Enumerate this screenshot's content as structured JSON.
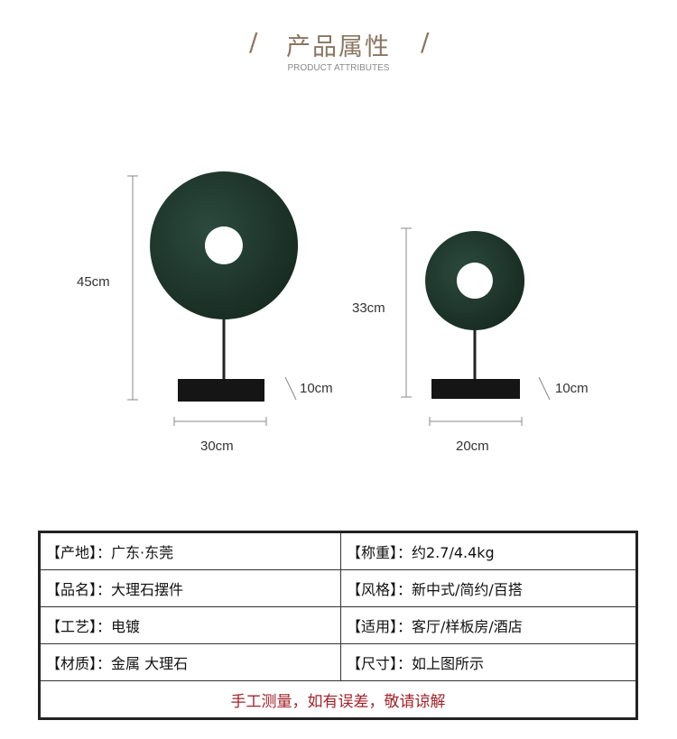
{
  "header": {
    "title": "产品属性",
    "subtitle": "PRODUCT ATTRIBUTES",
    "divider": "/"
  },
  "products": [
    {
      "height": "45cm",
      "width": "30cm",
      "base_height": "10cm"
    },
    {
      "height": "33cm",
      "width": "20cm",
      "base_height": "10cm"
    }
  ],
  "colors": {
    "marble": "#1f3a31",
    "accent": "#8a7560",
    "note": "#a3232a"
  },
  "attributes": [
    {
      "left": "【产地】：广东·东莞",
      "right": "【称重】：约2.7/4.4kg"
    },
    {
      "left": "【品名】：大理石摆件",
      "right": "【风格】：新中式/简约/百搭"
    },
    {
      "left": "【工艺】：电镀",
      "right": "【适用】：客厅/样板房/酒店"
    },
    {
      "left": "【材质】：金属 大理石",
      "right": "【尺寸】：如上图所示"
    }
  ],
  "note": "手工测量，如有误差，敬请谅解"
}
